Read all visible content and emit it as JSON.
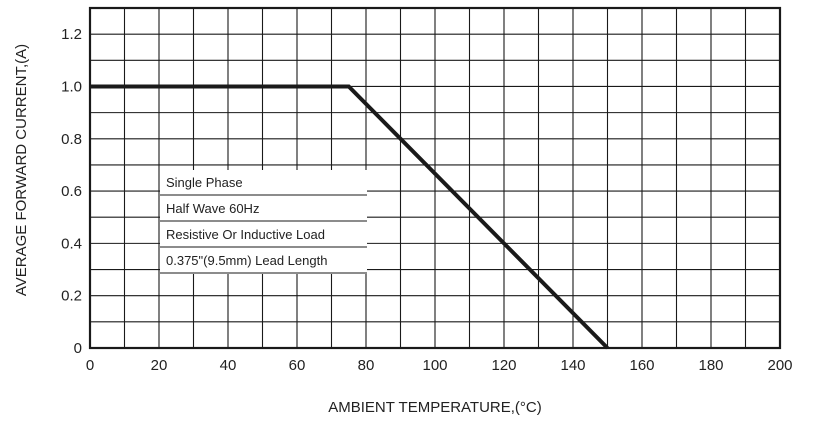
{
  "chart_data": {
    "type": "line",
    "title": "",
    "xlabel": "AMBIENT TEMPERATURE,(°C)",
    "ylabel": "AVERAGE FORWARD CURRENT,(A)",
    "xlim": [
      0,
      200
    ],
    "ylim": [
      0,
      1.3
    ],
    "x_ticks": [
      "0",
      "20",
      "40",
      "60",
      "80",
      "100",
      "120",
      "140",
      "160",
      "180",
      "200"
    ],
    "y_ticks": [
      "0",
      "0.2",
      "0.4",
      "0.6",
      "0.8",
      "1.0",
      "1.2"
    ],
    "grid": true,
    "series": [
      {
        "x": [
          0,
          75,
          150
        ],
        "y": [
          1.0,
          1.0,
          0
        ]
      }
    ],
    "annotations": [
      "Single Phase",
      "Half Wave 60Hz",
      "Resistive Or Inductive Load",
      "0.375\"(9.5mm) Lead Length"
    ],
    "colors": {
      "line": "#1a1a1a",
      "grid": "#1a1a1a",
      "frame": "#1a1a1a"
    }
  }
}
